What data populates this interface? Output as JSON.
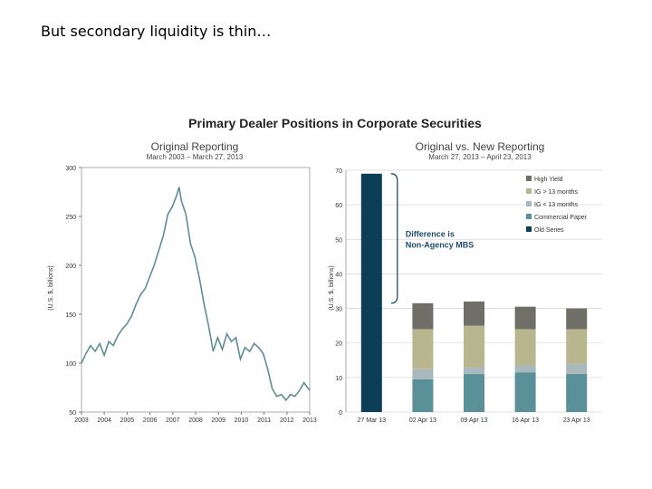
{
  "slide": {
    "title": "But secondary liquidity is thin…"
  },
  "figure": {
    "title": "Primary Dealer Positions in Corporate Securities"
  },
  "chart_data": [
    {
      "type": "line",
      "title": "Original Reporting",
      "subtitle": "March 2003 – March 27, 2013",
      "ylabel": "(U.S. $, billions)",
      "xlabel": "",
      "ylim": [
        50,
        300
      ],
      "yticks": [
        50,
        100,
        150,
        200,
        250,
        300
      ],
      "xticks": [
        "2003",
        "2004",
        "2005",
        "2006",
        "2007",
        "2008",
        "2009",
        "2010",
        "2011",
        "2012",
        "2013"
      ],
      "xlim": [
        2003.2,
        2013.25
      ],
      "grid": false,
      "color": "#5e8d95",
      "x": [
        2003.2,
        2003.4,
        2003.6,
        2003.8,
        2004.0,
        2004.2,
        2004.4,
        2004.6,
        2004.8,
        2005.0,
        2005.2,
        2005.4,
        2005.6,
        2005.8,
        2006.0,
        2006.2,
        2006.4,
        2006.6,
        2006.8,
        2007.0,
        2007.2,
        2007.4,
        2007.5,
        2007.6,
        2007.8,
        2008.0,
        2008.2,
        2008.4,
        2008.6,
        2008.8,
        2009.0,
        2009.2,
        2009.4,
        2009.6,
        2009.8,
        2010.0,
        2010.2,
        2010.4,
        2010.6,
        2010.8,
        2011.0,
        2011.2,
        2011.4,
        2011.6,
        2011.8,
        2012.0,
        2012.2,
        2012.4,
        2012.6,
        2012.8,
        2013.0,
        2013.25
      ],
      "y": [
        100,
        110,
        118,
        112,
        120,
        108,
        122,
        118,
        128,
        135,
        140,
        148,
        160,
        170,
        176,
        188,
        200,
        215,
        230,
        252,
        260,
        272,
        280,
        266,
        252,
        222,
        208,
        186,
        160,
        138,
        112,
        126,
        114,
        130,
        122,
        126,
        104,
        116,
        112,
        120,
        116,
        110,
        94,
        74,
        66,
        68,
        62,
        68,
        66,
        72,
        80,
        72
      ]
    },
    {
      "type": "bar",
      "stacked": true,
      "title": "Original vs. New Reporting",
      "subtitle": "March 27, 2013 – April 23, 2013",
      "ylabel": "(U.S. $, billions)",
      "xlabel": "",
      "ylim": [
        0,
        70
      ],
      "yticks": [
        0,
        10,
        20,
        30,
        40,
        50,
        60,
        70
      ],
      "grid": true,
      "legend": "top-right",
      "categories": [
        "27 Mar 13",
        "02 Apr 13",
        "09 Apr 13",
        "16 Apr 13",
        "23 Apr 13"
      ],
      "series": [
        {
          "name": "Old Series",
          "color": "#0c3f57",
          "values": [
            69,
            0,
            0,
            0,
            0
          ]
        },
        {
          "name": "Commercial Paper",
          "color": "#5a9199",
          "values": [
            0,
            9.5,
            11,
            11.5,
            11
          ]
        },
        {
          "name": "IG < 13 months",
          "color": "#a9b8bb",
          "values": [
            0,
            3,
            2,
            2,
            3
          ]
        },
        {
          "name": "IG > 13 months",
          "color": "#b8b68e",
          "values": [
            0,
            11.5,
            12,
            10.5,
            10
          ]
        },
        {
          "name": "High Yield",
          "color": "#6f6f67",
          "values": [
            0,
            7.5,
            7,
            6.5,
            6
          ]
        }
      ],
      "annotation": {
        "line1": "Difference is",
        "line2": "Non-Agency MBS",
        "color": "#1d4d6b"
      }
    }
  ]
}
